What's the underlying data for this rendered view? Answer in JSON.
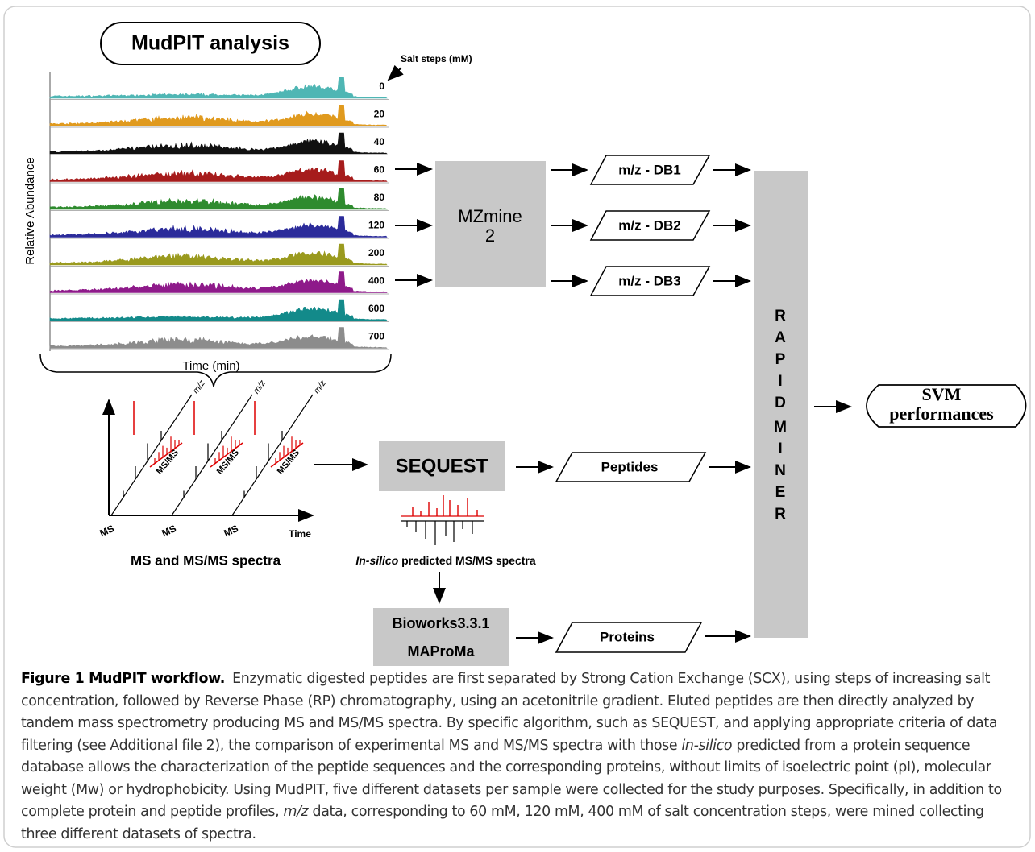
{
  "title": "MudPIT analysis",
  "salt_steps_label": "Salt steps (mM)",
  "traces": [
    {
      "salt": 0,
      "color": "#4fb6b4"
    },
    {
      "salt": 20,
      "color": "#e09a1e"
    },
    {
      "salt": 40,
      "color": "#111111"
    },
    {
      "salt": 60,
      "color": "#a61c1c"
    },
    {
      "salt": 80,
      "color": "#2e8b2e"
    },
    {
      "salt": 120,
      "color": "#2b2b9a"
    },
    {
      "salt": 200,
      "color": "#9a9a1e"
    },
    {
      "salt": 400,
      "color": "#8e1a8a"
    },
    {
      "salt": 600,
      "color": "#138a8a"
    },
    {
      "salt": 700,
      "color": "#8c8c8c"
    }
  ],
  "y_axis_label": "Relative Abundance",
  "x_axis_label": "Time (min)",
  "mzmine": [
    "MZmine",
    "2"
  ],
  "databases": [
    "m/z - DB1",
    "m/z - DB2",
    "m/z - DB3"
  ],
  "rapid_miner": [
    "RAPID",
    "MINER"
  ],
  "svm": [
    "SVM",
    "performances"
  ],
  "sequest": "SEQUEST",
  "peptides": "Peptides",
  "proteins": "Proteins",
  "bioworks": [
    "Bioworks3.3.1",
    "MAProMa"
  ],
  "spectra": {
    "mz": [
      "m/z",
      "m/z",
      "m/z"
    ],
    "msms": [
      "MS/MS",
      "MS/MS",
      "MS/MS"
    ],
    "ms": [
      "MS",
      "MS",
      "MS"
    ],
    "time": "Time",
    "caption": "MS and MS/MS spectra"
  },
  "insilico": {
    "italic": "In-silico",
    "rest": " predicted MS/MS spectra"
  },
  "caption": {
    "label": "Figure 1 MudPIT workflow.",
    "segments": [
      {
        "text": "Enzymatic digested peptides are first separated by Strong Cation Exchange (SCX), using steps of increasing salt concentration, followed by Reverse Phase (RP) chromatography, using an acetonitrile gradient. Eluted peptides are then directly analyzed by tandem mass spectrometry producing MS and MS/MS spectra. By specific algorithm, such as SEQUEST, and applying appropriate criteria of data filtering (see Additional file 2), the comparison of experimental MS and MS/MS spectra with those",
        "italic": false
      },
      {
        "text": "in-silico",
        "italic": true
      },
      {
        "text": "predicted from a protein sequence database allows the characterization of the peptide sequences and the corresponding proteins, without limits of isoelectric point (pI), molecular weight (Mw) or hydrophobicity. Using MudPIT, five different datasets per sample were collected for the study purposes. Specifically, in addition to complete protein and peptide profiles,",
        "italic": false
      },
      {
        "text": "m/z",
        "italic": true
      },
      {
        "text": "data, corresponding to 60 mM, 120 mM, 400 mM of salt concentration steps, were mined collecting three different datasets of spectra.",
        "italic": false
      }
    ]
  }
}
